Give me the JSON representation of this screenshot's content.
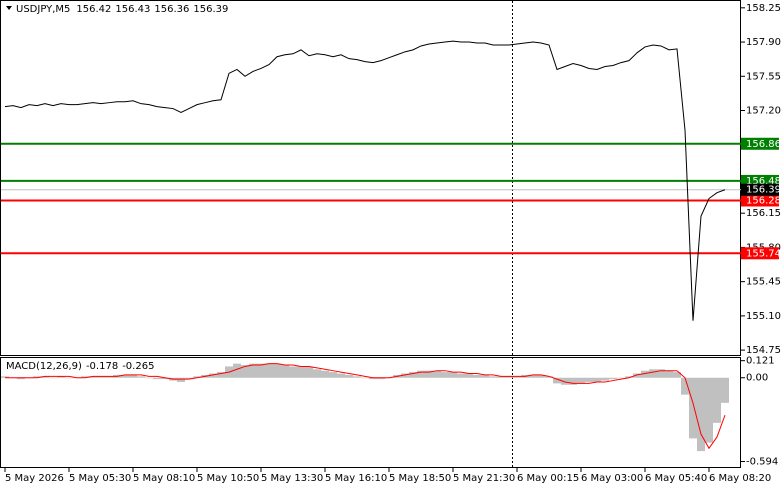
{
  "chart_data": {
    "type": "line",
    "symbol": "USDJPY,M5",
    "open": 156.42,
    "high": 156.43,
    "low": 156.36,
    "close": 156.39,
    "color": "#000000",
    "categories": [
      "5 May 2026",
      null,
      null,
      null,
      null,
      null,
      null,
      null,
      "5 May 05:30",
      null,
      null,
      null,
      null,
      null,
      null,
      null,
      "5 May 08:10",
      null,
      null,
      null,
      null,
      null,
      null,
      null,
      "5 May 10:50",
      null,
      null,
      null,
      null,
      null,
      null,
      null,
      "5 May 13:30",
      null,
      null,
      null,
      null,
      null,
      null,
      null,
      "5 May 16:10",
      null,
      null,
      null,
      null,
      null,
      null,
      null,
      "5 May 18:50",
      null,
      null,
      null,
      null,
      null,
      null,
      null,
      "5 May 21:30",
      null,
      null,
      null,
      null,
      null,
      null,
      null,
      "6 May 00:15",
      null,
      null,
      null,
      null,
      null,
      null,
      null,
      "6 May 03:00",
      null,
      null,
      null,
      null,
      null,
      null,
      null,
      "6 May 05:40",
      null,
      null,
      null,
      null,
      null,
      null,
      null,
      "6 May 08:20",
      null,
      null
    ],
    "values": [
      157.24,
      157.25,
      157.23,
      157.26,
      157.25,
      157.27,
      157.25,
      157.27,
      157.26,
      157.26,
      157.27,
      157.28,
      157.27,
      157.28,
      157.29,
      157.29,
      157.3,
      157.27,
      157.26,
      157.24,
      157.23,
      157.22,
      157.18,
      157.22,
      157.26,
      157.28,
      157.3,
      157.31,
      157.58,
      157.62,
      157.55,
      157.6,
      157.63,
      157.67,
      157.75,
      157.77,
      157.78,
      157.82,
      157.76,
      157.78,
      157.77,
      157.75,
      157.77,
      157.73,
      157.72,
      157.7,
      157.69,
      157.71,
      157.74,
      157.77,
      157.8,
      157.82,
      157.86,
      157.88,
      157.89,
      157.9,
      157.91,
      157.9,
      157.9,
      157.89,
      157.89,
      157.87,
      157.87,
      157.87,
      157.88,
      157.89,
      157.9,
      157.89,
      157.87,
      157.62,
      157.65,
      157.68,
      157.66,
      157.63,
      157.62,
      157.65,
      157.66,
      157.69,
      157.71,
      157.79,
      157.85,
      157.87,
      157.86,
      157.82,
      157.83,
      157.0,
      155.05,
      156.12,
      156.3,
      156.36,
      156.39
    ],
    "ylim": [
      154.7,
      158.33
    ],
    "yticks": [
      158.25,
      {
        "value": 157.9,
        "label": "157.90"
      },
      157.55,
      {
        "value": 157.2,
        "label": "157.20"
      },
      156.15,
      {
        "value": 155.8,
        "label": "155.80"
      },
      155.45,
      {
        "value": 155.1,
        "label": "155.10"
      },
      154.75
    ],
    "levels": [
      {
        "value": 156.86,
        "color": "#008000"
      },
      {
        "value": 156.48,
        "color": "#008000"
      },
      {
        "value": 156.28,
        "color": "#ff0000"
      },
      {
        "value": 155.74,
        "color": "#ff0000"
      }
    ],
    "macd": {
      "name": "MACD(12,26,9)",
      "histogram": {
        "color": "#c0c0c0",
        "values": [
          0.01,
          0.0,
          -0.01,
          0.0,
          0.01,
          0.01,
          0.0,
          0.01,
          0.0,
          0.0,
          0.01,
          0.01,
          0.01,
          0.01,
          0.02,
          0.02,
          0.02,
          0.01,
          0.0,
          -0.01,
          -0.01,
          -0.02,
          -0.03,
          -0.01,
          0.01,
          0.02,
          0.03,
          0.04,
          0.08,
          0.1,
          0.09,
          0.1,
          0.1,
          0.1,
          0.1,
          0.09,
          0.08,
          0.08,
          0.08,
          0.06,
          0.05,
          0.04,
          0.03,
          0.02,
          0.01,
          0.0,
          -0.01,
          -0.01,
          0.0,
          0.02,
          0.03,
          0.04,
          0.05,
          0.05,
          0.05,
          0.04,
          0.04,
          0.03,
          0.03,
          0.02,
          0.02,
          0.01,
          0.01,
          0.01,
          0.01,
          0.02,
          0.02,
          0.02,
          0.01,
          -0.04,
          -0.05,
          -0.05,
          -0.04,
          -0.03,
          -0.03,
          -0.02,
          -0.01,
          0.0,
          0.01,
          0.03,
          0.05,
          0.06,
          0.06,
          0.05,
          0.04,
          -0.12,
          -0.43,
          -0.52,
          -0.46,
          -0.32,
          -0.178
        ]
      },
      "signal": {
        "color": "#ff0000",
        "values": [
          0.0,
          0.0,
          0.0,
          0.0,
          0.0,
          0.01,
          0.01,
          0.01,
          0.01,
          0.0,
          0.0,
          0.01,
          0.01,
          0.01,
          0.01,
          0.02,
          0.02,
          0.02,
          0.01,
          0.01,
          0.0,
          -0.01,
          -0.01,
          -0.01,
          0.0,
          0.01,
          0.02,
          0.03,
          0.04,
          0.06,
          0.08,
          0.09,
          0.09,
          0.1,
          0.1,
          0.09,
          0.09,
          0.08,
          0.08,
          0.07,
          0.06,
          0.05,
          0.04,
          0.03,
          0.02,
          0.01,
          0.0,
          0.0,
          0.0,
          0.01,
          0.02,
          0.03,
          0.04,
          0.04,
          0.05,
          0.05,
          0.04,
          0.04,
          0.03,
          0.03,
          0.02,
          0.02,
          0.01,
          0.01,
          0.01,
          0.01,
          0.02,
          0.02,
          0.01,
          -0.01,
          -0.03,
          -0.04,
          -0.04,
          -0.04,
          -0.03,
          -0.03,
          -0.02,
          -0.01,
          0.0,
          0.02,
          0.03,
          0.04,
          0.05,
          0.05,
          0.05,
          0.0,
          -0.18,
          -0.4,
          -0.5,
          -0.42,
          -0.265
        ]
      },
      "ylim": [
        -0.64,
        0.14
      ],
      "yticks": [
        0.121,
        {
          "value": 0,
          "label": "0.00"
        },
        -0.594
      ]
    }
  }
}
